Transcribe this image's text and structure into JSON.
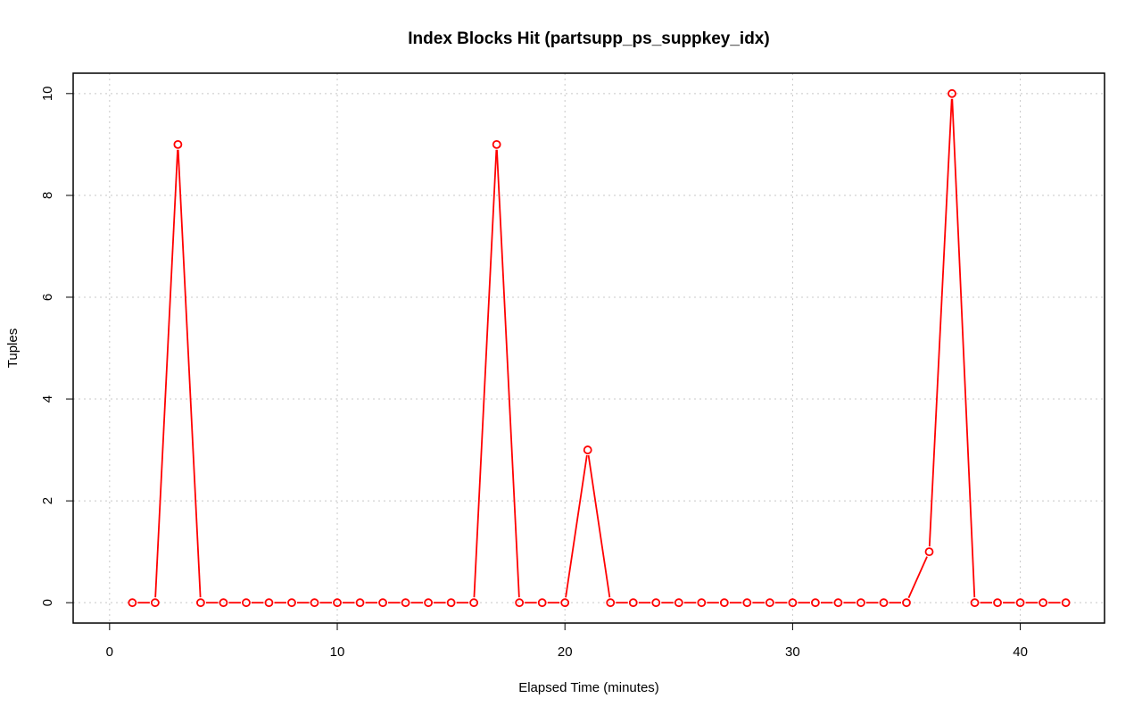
{
  "chart_data": {
    "type": "line",
    "title": "Index Blocks Hit (partsupp_ps_suppkey_idx)",
    "xlabel": "Elapsed Time (minutes)",
    "ylabel": "Tuples",
    "xlim": [
      -1.6,
      43.7
    ],
    "ylim": [
      -0.4,
      10.4
    ],
    "x_ticks": [
      0,
      10,
      20,
      30,
      40
    ],
    "y_ticks": [
      0,
      2,
      4,
      6,
      8,
      10
    ],
    "grid": true,
    "series": [
      {
        "color": "#ff0000",
        "marker": "open-circle",
        "x": [
          1,
          2,
          3,
          4,
          5,
          6,
          7,
          8,
          9,
          10,
          11,
          12,
          13,
          14,
          15,
          16,
          17,
          18,
          19,
          20,
          21,
          22,
          23,
          24,
          25,
          26,
          27,
          28,
          29,
          30,
          31,
          32,
          33,
          34,
          35,
          36,
          37,
          38,
          39,
          40,
          41,
          42
        ],
        "y": [
          0,
          0,
          9,
          0,
          0,
          0,
          0,
          0,
          0,
          0,
          0,
          0,
          0,
          0,
          0,
          0,
          9,
          0,
          0,
          0,
          3,
          0,
          0,
          0,
          0,
          0,
          0,
          0,
          0,
          0,
          0,
          0,
          0,
          0,
          0,
          1,
          10,
          0,
          0,
          0,
          0,
          0
        ]
      }
    ]
  }
}
